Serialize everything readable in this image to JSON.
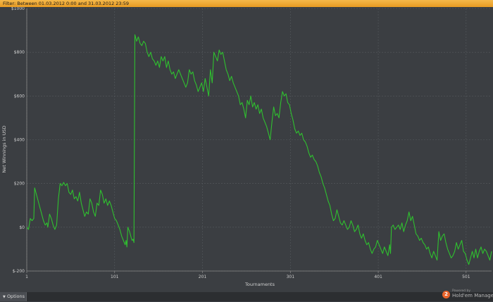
{
  "filter": {
    "label": "Filter:",
    "text": "Between 01.03.2012 0:00 and 31.03.2012 23:59"
  },
  "footer": {
    "options_label": "Options",
    "options_icon": "chevron-down-icon",
    "powered_by": "Powered by",
    "brand": "Hold'em Manager",
    "brand_badge": "2",
    "brand_color": "#e8632a"
  },
  "colors": {
    "background": "#3b3e42",
    "line": "#2fc02f",
    "grid": "#565a5e",
    "filter_bar": "#f0a835"
  },
  "chart_data": {
    "type": "line",
    "title": "",
    "xlabel": "Tournaments",
    "ylabel": "Net Winnings in USD",
    "xlim": [
      1,
      530
    ],
    "ylim": [
      -200,
      1000
    ],
    "x_ticks": [
      1,
      101,
      201,
      301,
      401,
      501
    ],
    "y_ticks": [
      -200,
      0,
      200,
      400,
      600,
      800,
      1000
    ],
    "y_tick_labels": [
      "$-200",
      "$0",
      "$200",
      "$400",
      "$600",
      "$800",
      "$1000"
    ],
    "grid": true,
    "series": [
      {
        "name": "",
        "color": "#2fc02f",
        "points": [
          [
            1,
            0
          ],
          [
            3,
            -10
          ],
          [
            5,
            40
          ],
          [
            7,
            30
          ],
          [
            9,
            40
          ],
          [
            10,
            180
          ],
          [
            12,
            150
          ],
          [
            14,
            120
          ],
          [
            16,
            90
          ],
          [
            18,
            60
          ],
          [
            20,
            30
          ],
          [
            22,
            10
          ],
          [
            24,
            20
          ],
          [
            25,
            0
          ],
          [
            27,
            60
          ],
          [
            29,
            40
          ],
          [
            31,
            10
          ],
          [
            33,
            -10
          ],
          [
            35,
            10
          ],
          [
            37,
            130
          ],
          [
            39,
            200
          ],
          [
            41,
            190
          ],
          [
            43,
            205
          ],
          [
            45,
            190
          ],
          [
            47,
            200
          ],
          [
            49,
            160
          ],
          [
            51,
            150
          ],
          [
            53,
            170
          ],
          [
            55,
            130
          ],
          [
            57,
            140
          ],
          [
            59,
            120
          ],
          [
            61,
            160
          ],
          [
            63,
            110
          ],
          [
            65,
            80
          ],
          [
            67,
            50
          ],
          [
            69,
            70
          ],
          [
            71,
            60
          ],
          [
            73,
            130
          ],
          [
            75,
            110
          ],
          [
            77,
            70
          ],
          [
            79,
            50
          ],
          [
            81,
            110
          ],
          [
            83,
            100
          ],
          [
            85,
            170
          ],
          [
            87,
            150
          ],
          [
            89,
            110
          ],
          [
            91,
            130
          ],
          [
            93,
            100
          ],
          [
            95,
            120
          ],
          [
            97,
            100
          ],
          [
            99,
            70
          ],
          [
            101,
            40
          ],
          [
            103,
            30
          ],
          [
            105,
            10
          ],
          [
            107,
            -10
          ],
          [
            109,
            -40
          ],
          [
            111,
            -60
          ],
          [
            113,
            -80
          ],
          [
            114,
            -60
          ],
          [
            115,
            -90
          ],
          [
            116,
            0
          ],
          [
            118,
            -20
          ],
          [
            120,
            -50
          ],
          [
            121,
            -60
          ],
          [
            122,
            -55
          ],
          [
            123,
            -70
          ],
          [
            124,
            880
          ],
          [
            126,
            850
          ],
          [
            128,
            870
          ],
          [
            130,
            840
          ],
          [
            132,
            830
          ],
          [
            134,
            850
          ],
          [
            136,
            840
          ],
          [
            138,
            800
          ],
          [
            140,
            780
          ],
          [
            142,
            800
          ],
          [
            144,
            770
          ],
          [
            146,
            760
          ],
          [
            148,
            740
          ],
          [
            150,
            760
          ],
          [
            152,
            730
          ],
          [
            154,
            780
          ],
          [
            156,
            760
          ],
          [
            158,
            780
          ],
          [
            160,
            730
          ],
          [
            162,
            760
          ],
          [
            164,
            720
          ],
          [
            166,
            700
          ],
          [
            168,
            710
          ],
          [
            170,
            680
          ],
          [
            172,
            700
          ],
          [
            174,
            720
          ],
          [
            176,
            700
          ],
          [
            178,
            680
          ],
          [
            180,
            660
          ],
          [
            182,
            640
          ],
          [
            184,
            660
          ],
          [
            186,
            720
          ],
          [
            188,
            700
          ],
          [
            190,
            710
          ],
          [
            192,
            670
          ],
          [
            194,
            650
          ],
          [
            196,
            620
          ],
          [
            198,
            640
          ],
          [
            200,
            660
          ],
          [
            202,
            620
          ],
          [
            204,
            680
          ],
          [
            206,
            640
          ],
          [
            208,
            600
          ],
          [
            210,
            720
          ],
          [
            212,
            660
          ],
          [
            214,
            800
          ],
          [
            216,
            780
          ],
          [
            218,
            760
          ],
          [
            220,
            810
          ],
          [
            222,
            790
          ],
          [
            224,
            800
          ],
          [
            226,
            760
          ],
          [
            228,
            720
          ],
          [
            230,
            700
          ],
          [
            232,
            670
          ],
          [
            234,
            690
          ],
          [
            236,
            660
          ],
          [
            238,
            640
          ],
          [
            240,
            620
          ],
          [
            242,
            600
          ],
          [
            244,
            560
          ],
          [
            246,
            570
          ],
          [
            248,
            540
          ],
          [
            250,
            500
          ],
          [
            252,
            580
          ],
          [
            254,
            560
          ],
          [
            256,
            600
          ],
          [
            258,
            550
          ],
          [
            260,
            570
          ],
          [
            262,
            540
          ],
          [
            264,
            560
          ],
          [
            266,
            520
          ],
          [
            268,
            540
          ],
          [
            270,
            500
          ],
          [
            272,
            480
          ],
          [
            274,
            460
          ],
          [
            276,
            430
          ],
          [
            278,
            400
          ],
          [
            280,
            480
          ],
          [
            282,
            550
          ],
          [
            284,
            510
          ],
          [
            286,
            520
          ],
          [
            288,
            500
          ],
          [
            290,
            570
          ],
          [
            292,
            620
          ],
          [
            294,
            600
          ],
          [
            296,
            610
          ],
          [
            298,
            570
          ],
          [
            300,
            560
          ],
          [
            302,
            520
          ],
          [
            304,
            490
          ],
          [
            306,
            450
          ],
          [
            308,
            430
          ],
          [
            310,
            440
          ],
          [
            312,
            420
          ],
          [
            314,
            430
          ],
          [
            316,
            400
          ],
          [
            318,
            390
          ],
          [
            320,
            370
          ],
          [
            322,
            340
          ],
          [
            324,
            320
          ],
          [
            326,
            330
          ],
          [
            328,
            310
          ],
          [
            330,
            300
          ],
          [
            332,
            280
          ],
          [
            334,
            250
          ],
          [
            336,
            230
          ],
          [
            338,
            200
          ],
          [
            340,
            180
          ],
          [
            342,
            150
          ],
          [
            344,
            120
          ],
          [
            346,
            100
          ],
          [
            348,
            60
          ],
          [
            350,
            30
          ],
          [
            352,
            40
          ],
          [
            354,
            80
          ],
          [
            356,
            50
          ],
          [
            358,
            20
          ],
          [
            360,
            10
          ],
          [
            362,
            30
          ],
          [
            364,
            10
          ],
          [
            366,
            -10
          ],
          [
            368,
            0
          ],
          [
            370,
            30
          ],
          [
            372,
            10
          ],
          [
            374,
            -20
          ],
          [
            376,
            -10
          ],
          [
            378,
            10
          ],
          [
            380,
            -30
          ],
          [
            382,
            -50
          ],
          [
            384,
            -30
          ],
          [
            386,
            -60
          ],
          [
            388,
            -80
          ],
          [
            390,
            -70
          ],
          [
            392,
            -100
          ],
          [
            394,
            -120
          ],
          [
            396,
            -100
          ],
          [
            398,
            -90
          ],
          [
            400,
            -60
          ],
          [
            402,
            -80
          ],
          [
            404,
            -100
          ],
          [
            406,
            -120
          ],
          [
            408,
            -90
          ],
          [
            410,
            -110
          ],
          [
            412,
            -130
          ],
          [
            414,
            -80
          ],
          [
            415,
            -120
          ],
          [
            416,
            0
          ],
          [
            418,
            10
          ],
          [
            420,
            -10
          ],
          [
            422,
            0
          ],
          [
            424,
            10
          ],
          [
            426,
            -10
          ],
          [
            428,
            20
          ],
          [
            430,
            -20
          ],
          [
            432,
            10
          ],
          [
            434,
            30
          ],
          [
            436,
            70
          ],
          [
            438,
            30
          ],
          [
            440,
            50
          ],
          [
            442,
            10
          ],
          [
            444,
            -30
          ],
          [
            446,
            -40
          ],
          [
            448,
            -60
          ],
          [
            450,
            -50
          ],
          [
            452,
            -70
          ],
          [
            454,
            -80
          ],
          [
            456,
            -100
          ],
          [
            458,
            -90
          ],
          [
            460,
            -120
          ],
          [
            462,
            -140
          ],
          [
            464,
            -110
          ],
          [
            466,
            -130
          ],
          [
            468,
            -150
          ],
          [
            470,
            -20
          ],
          [
            472,
            -60
          ],
          [
            474,
            -40
          ],
          [
            476,
            -30
          ],
          [
            478,
            -70
          ],
          [
            480,
            -100
          ],
          [
            482,
            -120
          ],
          [
            484,
            -140
          ],
          [
            486,
            -130
          ],
          [
            488,
            -110
          ],
          [
            490,
            -70
          ],
          [
            492,
            -100
          ],
          [
            494,
            -80
          ],
          [
            496,
            -60
          ],
          [
            498,
            -110
          ],
          [
            500,
            -120
          ],
          [
            502,
            -150
          ],
          [
            504,
            -170
          ],
          [
            506,
            -140
          ],
          [
            508,
            -110
          ],
          [
            510,
            -140
          ],
          [
            512,
            -100
          ],
          [
            514,
            -140
          ],
          [
            516,
            -110
          ],
          [
            518,
            -90
          ],
          [
            520,
            -120
          ],
          [
            522,
            -100
          ],
          [
            524,
            -110
          ],
          [
            526,
            -130
          ],
          [
            528,
            -150
          ],
          [
            530,
            -110
          ]
        ]
      }
    ]
  }
}
